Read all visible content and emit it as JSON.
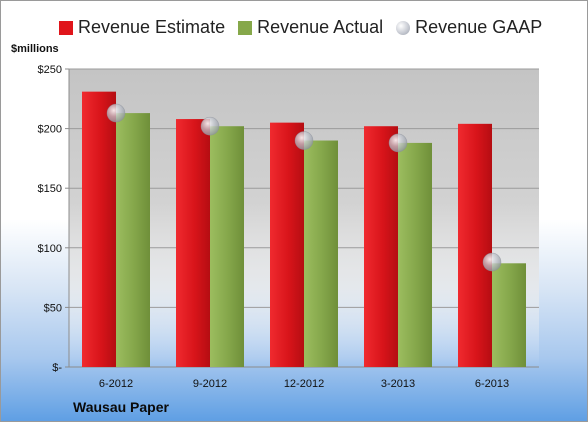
{
  "chart_data": {
    "type": "bar",
    "title": "",
    "ylabel": "$millions",
    "xlabel": "",
    "company": "Wausau Paper",
    "categories": [
      "6-2012",
      "9-2012",
      "12-2012",
      "3-2013",
      "6-2013"
    ],
    "ylim": [
      0,
      250
    ],
    "yticks": [
      0,
      50,
      100,
      150,
      200,
      250
    ],
    "ytick_labels": [
      "$-",
      "$50",
      "$100",
      "$150",
      "$200",
      "$250"
    ],
    "legend_position": "top",
    "grid": true,
    "series": [
      {
        "name": "Revenue Estimate",
        "kind": "bar",
        "color": "#e0151b",
        "values": [
          231,
          208,
          205,
          202,
          204
        ]
      },
      {
        "name": "Revenue Actual",
        "kind": "bar",
        "color": "#86a84a",
        "values": [
          213,
          202,
          190,
          188,
          87
        ]
      },
      {
        "name": "Revenue GAAP",
        "kind": "marker",
        "color": "#b7bcc6",
        "values": [
          213,
          202,
          190,
          188,
          88
        ]
      }
    ]
  }
}
